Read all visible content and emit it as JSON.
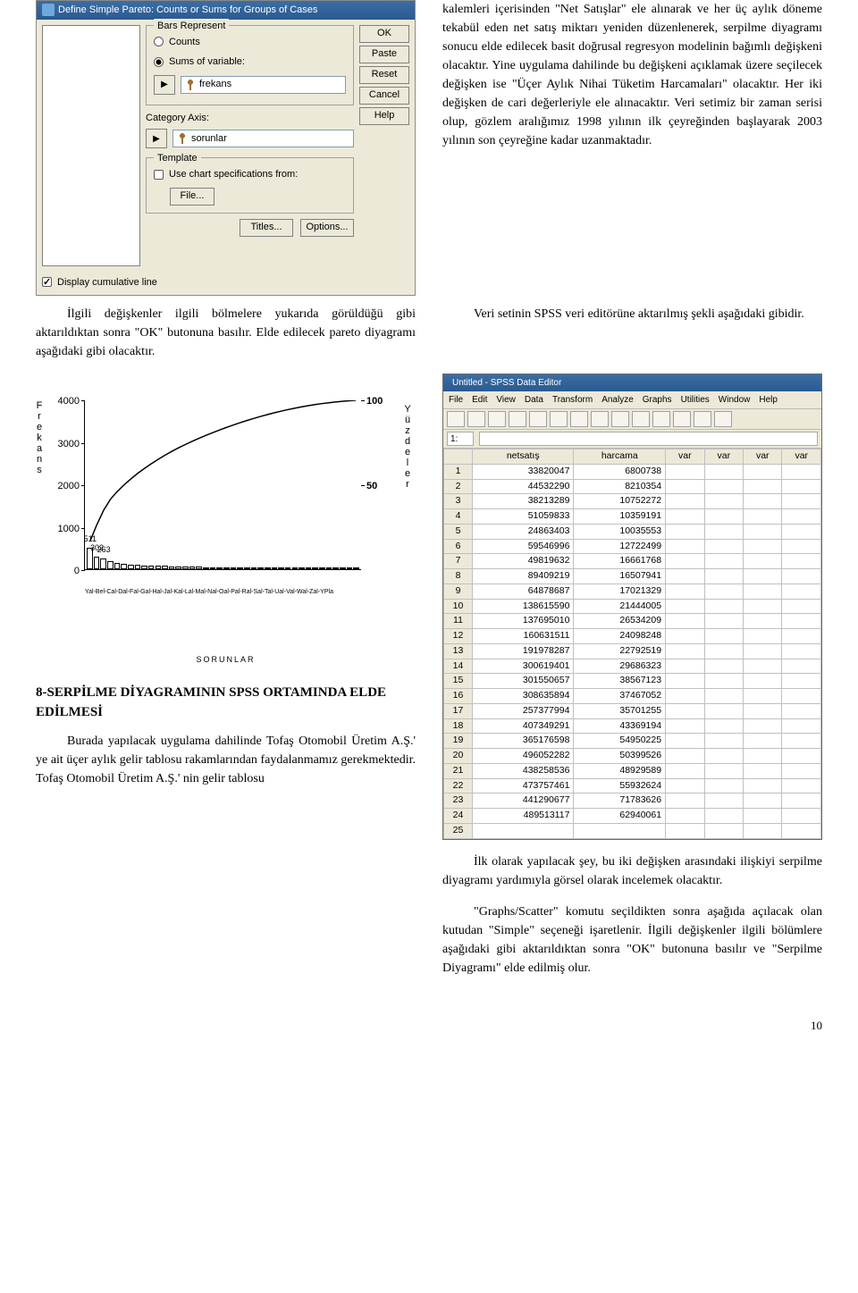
{
  "dialog": {
    "title": "Define Simple Pareto: Counts or Sums for Groups of Cases",
    "group_bars": "Bars Represent",
    "radio_counts": "Counts",
    "radio_sums": "Sums of variable:",
    "field_frekans": "frekans",
    "category_axis_label": "Category Axis:",
    "field_sorunlar": "sorunlar",
    "group_template": "Template",
    "check_template": "Use chart specifications from:",
    "btn_file": "File...",
    "check_cumulative": "Display cumulative line",
    "btn_titles": "Titles...",
    "btn_options": "Options...",
    "btns": {
      "ok": "OK",
      "paste": "Paste",
      "reset": "Reset",
      "cancel": "Cancel",
      "help": "Help"
    }
  },
  "right_top_para": "kalemleri içerisinden \"Net Satışlar\" ele alınarak ve her üç aylık döneme tekabül eden net satış miktarı yeniden düzenlenerek, serpilme diyagramı sonucu elde edilecek basit doğrusal regresyon modelinin bağımlı değişkeni olacaktır. Yine uygulama dahilinde bu değişkeni açıklamak üzere seçilecek değişken ise \"Üçer Aylık Nihai Tüketim Harcamaları\" olacaktır. Her iki değişken de cari değerleriyle ele alınacaktır. Veri setimiz bir zaman serisi olup, gözlem aralığımız 1998 yılının ilk çeyreğinden başlayarak 2003 yılının son çeyreğine kadar uzanmaktadır.",
  "left_para": "İlgili değişkenler ilgili bölmelere yukarıda görüldüğü gibi aktarıldıktan sonra \"OK\" butonuna basılır. Elde edilecek pareto diyagramı aşağıdaki gibi olacaktır.",
  "right_mid_para": "Veri setinin SPSS veri editörüne aktarılmış şekli aşağıdaki gibidir.",
  "pareto_chart": {
    "type": "pareto",
    "y_left_label": "Frekans",
    "y_right_label": "Yüzdeler",
    "y_left_ticks": [
      0,
      1000,
      2000,
      3000,
      4000
    ],
    "y_left_max": 4000,
    "y_right_ticks": [
      50,
      100
    ],
    "bars": [
      511,
      302,
      263,
      200,
      140,
      120,
      110,
      100,
      90,
      85,
      80,
      75,
      70,
      65,
      60,
      58,
      55,
      52,
      50,
      48,
      46,
      44,
      42,
      40,
      38,
      36,
      34,
      32,
      30,
      28,
      26,
      24,
      22,
      20,
      18,
      16,
      14,
      12,
      10,
      8
    ],
    "bar_labels_visible": [
      511,
      302,
      263
    ],
    "bar_color": "#ffffff",
    "bar_border": "#000000",
    "line_color": "#000000",
    "background": "#ffffff",
    "axis_color": "#000000",
    "x_scrawl": "Yal-Bel-Cal-Dal-Fal-Gal-Hal-Jal-Kal-Lal-Mal-Nal-Oal-Pal-Ral-Sal-Tal-Ual-Val-Wal-Zal-YPla",
    "x_caption": "SORUNLAR"
  },
  "section8_heading": "8-SERPİLME DİYAGRAMININ SPSS ORTAMINDA ELDE EDİLMESİ",
  "left_bottom_para": "Burada yapılacak uygulama dahilinde Tofaş Otomobil Üretim A.Ş.' ye ait üçer aylık gelir tablosu rakamlarından faydalanmamız gerekmektedir. Tofaş Otomobil Üretim A.Ş.' nin gelir tablosu",
  "right_bottom_para1": "İlk olarak yapılacak şey, bu iki değişken arasındaki ilişkiyi serpilme diyagramı yardımıyla görsel olarak incelemek olacaktır.",
  "right_bottom_para2": "\"Graphs/Scatter\" komutu seçildikten sonra aşağıda açılacak olan kutudan \"Simple\" seçeneği işaretlenir. İlgili değişkenler ilgili bölümlere aşağıdaki gibi aktarıldıktan sonra \"OK\" butonuna basılır ve \"Serpilme Diyagramı\" elde edilmiş olur.",
  "spss": {
    "title": "Untitled - SPSS Data Editor",
    "menu": [
      "File",
      "Edit",
      "View",
      "Data",
      "Transform",
      "Analyze",
      "Graphs",
      "Utilities",
      "Window",
      "Help"
    ],
    "active_cell": "1:",
    "columns": [
      "netsatış",
      "harcama",
      "var",
      "var",
      "var",
      "var"
    ],
    "rows": [
      [
        33820047,
        6800738
      ],
      [
        44532290,
        8210354
      ],
      [
        38213289,
        10752272
      ],
      [
        51059833,
        10359191
      ],
      [
        24863403,
        10035553
      ],
      [
        59546996,
        12722499
      ],
      [
        49819632,
        16661768
      ],
      [
        89409219,
        16507941
      ],
      [
        64878687,
        17021329
      ],
      [
        138615590,
        21444005
      ],
      [
        137695010,
        26534209
      ],
      [
        160631511,
        24098248
      ],
      [
        191978287,
        22792519
      ],
      [
        300619401,
        29686323
      ],
      [
        301550657,
        38567123
      ],
      [
        308635894,
        37467052
      ],
      [
        257377994,
        35701255
      ],
      [
        407349291,
        43369194
      ],
      [
        365176598,
        54950225
      ],
      [
        496052282,
        50399526
      ],
      [
        438258536,
        48929589
      ],
      [
        473757461,
        55932624
      ],
      [
        441290677,
        71783626
      ],
      [
        489513117,
        62940061
      ]
    ],
    "header_bg": "#ece9d8",
    "cell_border": "#c0c0c0",
    "cell_bg": "#ffffff"
  },
  "page_number": "10"
}
